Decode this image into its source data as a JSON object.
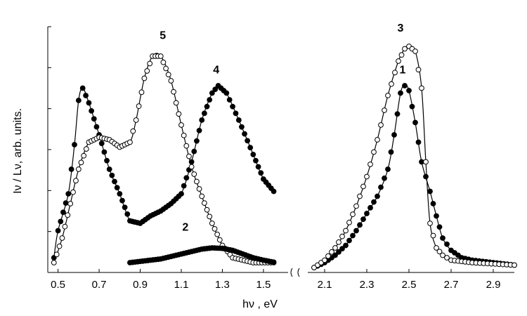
{
  "chart_data": {
    "type": "line",
    "xlabel": "hν , eV",
    "ylabel": "Iν / Lν, arb. units.",
    "y_tick_labels_shown": false,
    "axis_break_between": [
      1.6,
      2.05
    ],
    "segments": [
      {
        "xlim": [
          0.45,
          1.62
        ],
        "ticks": [
          0.5,
          0.7,
          0.9,
          1.1,
          1.3,
          1.5
        ],
        "tick_labels": [
          "0.5",
          "0.7",
          "0.9",
          "1.1",
          "1.3",
          "1.5"
        ]
      },
      {
        "xlim": [
          2.02,
          3.0
        ],
        "ticks": [
          2.1,
          2.3,
          2.5,
          2.7,
          2.9
        ],
        "tick_labels": [
          "2.1",
          "2.3",
          "2.5",
          "2.7",
          "2.9"
        ]
      }
    ],
    "ylim": [
      0,
      1.0
    ],
    "series": [
      {
        "name": "1",
        "marker": "filled",
        "segment": 2,
        "points": [
          [
            2.05,
            0.02
          ],
          [
            2.1,
            0.04
          ],
          [
            2.15,
            0.07
          ],
          [
            2.2,
            0.11
          ],
          [
            2.25,
            0.17
          ],
          [
            2.3,
            0.24
          ],
          [
            2.35,
            0.31
          ],
          [
            2.4,
            0.42
          ],
          [
            2.43,
            0.56
          ],
          [
            2.46,
            0.73
          ],
          [
            2.48,
            0.76
          ],
          [
            2.5,
            0.74
          ],
          [
            2.53,
            0.61
          ],
          [
            2.56,
            0.45
          ],
          [
            2.6,
            0.33
          ],
          [
            2.63,
            0.23
          ],
          [
            2.66,
            0.14
          ],
          [
            2.7,
            0.09
          ],
          [
            2.75,
            0.06
          ],
          [
            2.8,
            0.05
          ],
          [
            2.9,
            0.04
          ],
          [
            3.0,
            0.03
          ]
        ],
        "label_at": [
          2.47,
          0.81
        ]
      },
      {
        "name": "3",
        "marker": "open",
        "segment": 2,
        "points": [
          [
            2.05,
            0.02
          ],
          [
            2.1,
            0.05
          ],
          [
            2.15,
            0.1
          ],
          [
            2.2,
            0.17
          ],
          [
            2.25,
            0.27
          ],
          [
            2.3,
            0.39
          ],
          [
            2.35,
            0.54
          ],
          [
            2.4,
            0.72
          ],
          [
            2.45,
            0.86
          ],
          [
            2.48,
            0.91
          ],
          [
            2.5,
            0.92
          ],
          [
            2.53,
            0.9
          ],
          [
            2.56,
            0.75
          ],
          [
            2.58,
            0.45
          ],
          [
            2.6,
            0.2
          ],
          [
            2.63,
            0.1
          ],
          [
            2.66,
            0.07
          ],
          [
            2.7,
            0.05
          ],
          [
            2.8,
            0.04
          ],
          [
            3.0,
            0.03
          ]
        ],
        "label_at": [
          2.46,
          0.98
        ]
      },
      {
        "name": "4",
        "marker": "filled",
        "segment": 1,
        "points": [
          [
            0.48,
            0.06
          ],
          [
            0.5,
            0.17
          ],
          [
            0.55,
            0.32
          ],
          [
            0.58,
            0.52
          ],
          [
            0.6,
            0.7
          ],
          [
            0.62,
            0.75
          ],
          [
            0.65,
            0.69
          ],
          [
            0.7,
            0.56
          ],
          [
            0.75,
            0.42
          ],
          [
            0.8,
            0.32
          ],
          [
            0.85,
            0.21
          ],
          [
            0.9,
            0.2
          ],
          [
            0.95,
            0.23
          ],
          [
            1.0,
            0.25
          ],
          [
            1.05,
            0.28
          ],
          [
            1.1,
            0.32
          ],
          [
            1.15,
            0.45
          ],
          [
            1.2,
            0.62
          ],
          [
            1.25,
            0.73
          ],
          [
            1.28,
            0.76
          ],
          [
            1.32,
            0.73
          ],
          [
            1.38,
            0.62
          ],
          [
            1.45,
            0.48
          ],
          [
            1.5,
            0.38
          ],
          [
            1.55,
            0.33
          ]
        ],
        "label_at": [
          1.27,
          0.81
        ]
      },
      {
        "name": "5",
        "marker": "open",
        "segment": 1,
        "points": [
          [
            0.48,
            0.04
          ],
          [
            0.52,
            0.14
          ],
          [
            0.56,
            0.28
          ],
          [
            0.6,
            0.42
          ],
          [
            0.65,
            0.53
          ],
          [
            0.7,
            0.55
          ],
          [
            0.75,
            0.54
          ],
          [
            0.8,
            0.51
          ],
          [
            0.85,
            0.53
          ],
          [
            0.88,
            0.62
          ],
          [
            0.92,
            0.79
          ],
          [
            0.96,
            0.88
          ],
          [
            1.0,
            0.88
          ],
          [
            1.05,
            0.78
          ],
          [
            1.1,
            0.6
          ],
          [
            1.15,
            0.43
          ],
          [
            1.2,
            0.31
          ],
          [
            1.25,
            0.2
          ],
          [
            1.3,
            0.11
          ],
          [
            1.35,
            0.06
          ],
          [
            1.45,
            0.04
          ],
          [
            1.55,
            0.04
          ]
        ],
        "label_at": [
          1.01,
          0.95
        ]
      },
      {
        "name": "2",
        "marker": "filled",
        "segment": 1,
        "points": [
          [
            0.85,
            0.04
          ],
          [
            0.9,
            0.045
          ],
          [
            0.95,
            0.05
          ],
          [
            1.0,
            0.055
          ],
          [
            1.05,
            0.065
          ],
          [
            1.1,
            0.075
          ],
          [
            1.15,
            0.085
          ],
          [
            1.2,
            0.095
          ],
          [
            1.25,
            0.1
          ],
          [
            1.3,
            0.098
          ],
          [
            1.35,
            0.09
          ],
          [
            1.4,
            0.075
          ],
          [
            1.45,
            0.06
          ],
          [
            1.5,
            0.05
          ],
          [
            1.55,
            0.042
          ]
        ],
        "label_at": [
          1.12,
          0.17
        ]
      }
    ],
    "colors": {
      "line": "#000000",
      "marker_fill": "#000000",
      "open_marker_fill": "#ffffff"
    }
  }
}
